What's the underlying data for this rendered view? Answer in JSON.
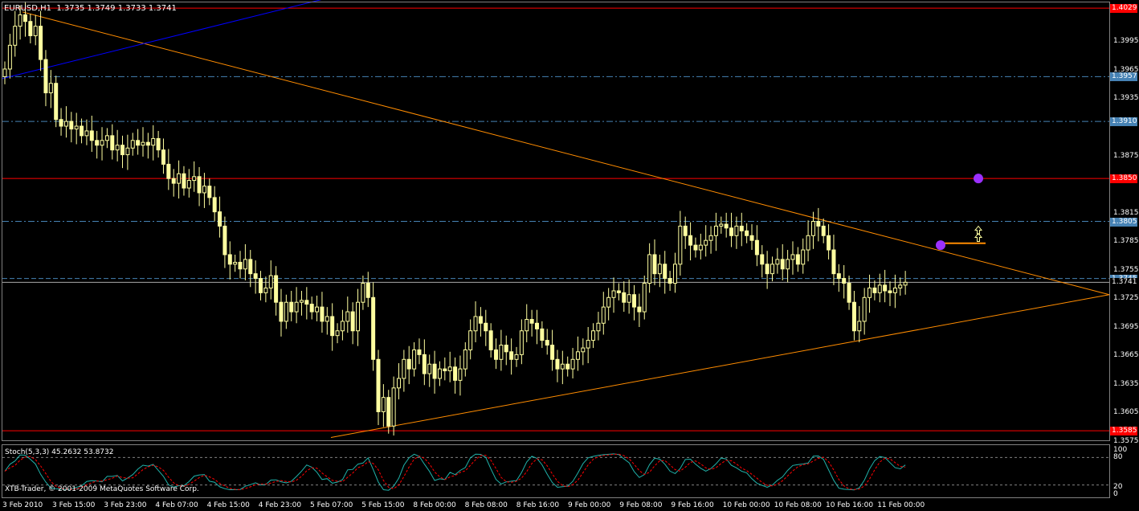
{
  "header": {
    "symbol_label": "EURUSD,H1",
    "ohlc": "1.3735 1.3749 1.3733 1.3741"
  },
  "stoch_panel": {
    "label": "Stoch(5,3,3) 45.2632 53.8732",
    "levels": [
      "100",
      "80",
      "20",
      "0"
    ]
  },
  "copyright": "XTB-Trader, © 2001-2009 MetaQuotes Software Corp.",
  "colors": {
    "background": "#000000",
    "candle": "#ffffa0",
    "red_line": "#ff0000",
    "dash_line": "#4682b4",
    "trend_orange": "#ff8c00",
    "channel_blue": "#0000ff",
    "purple_dot": "#9b30ff",
    "stoch_main": "#20b2aa",
    "stoch_signal": "#ff0000"
  },
  "chart_data": {
    "type": "candlestick",
    "symbol": "EURUSD",
    "timeframe": "H1",
    "ylim": [
      1.3575,
      1.4035
    ],
    "yticks": [
      "1.3995",
      "1.3965",
      "1.3935",
      "1.3875",
      "1.3815",
      "1.3785",
      "1.3755",
      "1.3725",
      "1.3695",
      "1.3665",
      "1.3635",
      "1.3605",
      "1.3575"
    ],
    "price_tags": [
      {
        "value": 1.4029,
        "text": "1.4029",
        "style": "red"
      },
      {
        "value": 1.3957,
        "text": "1.3957",
        "style": "blue"
      },
      {
        "value": 1.391,
        "text": "1.3910",
        "style": "blue"
      },
      {
        "value": 1.385,
        "text": "1.3850",
        "style": "red"
      },
      {
        "value": 1.3805,
        "text": "1.3805",
        "style": "blue"
      },
      {
        "value": 1.3745,
        "text": "1.3745",
        "style": "blue"
      },
      {
        "value": 1.3741,
        "text": "1.3741",
        "style": "dark"
      },
      {
        "value": 1.3585,
        "text": "1.3585",
        "style": "red"
      }
    ],
    "horizontal_lines": [
      {
        "value": 1.4029,
        "style": "solid-red"
      },
      {
        "value": 1.3957,
        "style": "dashdot-blue"
      },
      {
        "value": 1.391,
        "style": "dashdot-blue"
      },
      {
        "value": 1.385,
        "style": "solid-red"
      },
      {
        "value": 1.3805,
        "style": "dashdot-blue"
      },
      {
        "value": 1.3745,
        "style": "dash-blue"
      },
      {
        "value": 1.3741,
        "style": "solid-gray"
      },
      {
        "value": 1.3585,
        "style": "solid-red"
      }
    ],
    "xticks": [
      "3 Feb 2010",
      "3 Feb 15:00",
      "3 Feb 23:00",
      "4 Feb 07:00",
      "4 Feb 15:00",
      "4 Feb 23:00",
      "5 Feb 07:00",
      "5 Feb 15:00",
      "8 Feb 00:00",
      "8 Feb 08:00",
      "8 Feb 16:00",
      "9 Feb 00:00",
      "9 Feb 08:00",
      "9 Feb 16:00",
      "10 Feb 00:00",
      "10 Feb 08:00",
      "10 Feb 16:00",
      "11 Feb 00:00"
    ],
    "closes": [
      1.3965,
      1.399,
      1.401,
      1.4022,
      1.4015,
      1.4,
      1.401,
      1.3975,
      1.394,
      1.395,
      1.3912,
      1.3905,
      1.391,
      1.3902,
      1.3905,
      1.3895,
      1.39,
      1.389,
      1.3885,
      1.389,
      1.3895,
      1.388,
      1.3885,
      1.3875,
      1.3882,
      1.389,
      1.3885,
      1.3888,
      1.3885,
      1.3892,
      1.388,
      1.3865,
      1.385,
      1.3845,
      1.3855,
      1.384,
      1.3848,
      1.3852,
      1.3835,
      1.3842,
      1.383,
      1.3815,
      1.38,
      1.377,
      1.376,
      1.3762,
      1.3755,
      1.3765,
      1.375,
      1.3745,
      1.373,
      1.3735,
      1.3748,
      1.372,
      1.37,
      1.372,
      1.371,
      1.372,
      1.3722,
      1.3718,
      1.371,
      1.3715,
      1.37,
      1.3705,
      1.3685,
      1.369,
      1.37,
      1.371,
      1.369,
      1.372,
      1.374,
      1.3725,
      1.366,
      1.3605,
      1.362,
      1.359,
      1.363,
      1.364,
      1.366,
      1.365,
      1.367,
      1.3665,
      1.3645,
      1.3655,
      1.364,
      1.365,
      1.3648,
      1.3652,
      1.3638,
      1.365,
      1.367,
      1.369,
      1.3705,
      1.3698,
      1.369,
      1.367,
      1.366,
      1.3675,
      1.3668,
      1.366,
      1.3665,
      1.369,
      1.3702,
      1.3698,
      1.3692,
      1.368,
      1.3675,
      1.366,
      1.365,
      1.3655,
      1.365,
      1.366,
      1.3668,
      1.3672,
      1.368,
      1.369,
      1.3698,
      1.3715,
      1.3725,
      1.3732,
      1.373,
      1.372,
      1.3728,
      1.3715,
      1.371,
      1.374,
      1.377,
      1.375,
      1.376,
      1.3745,
      1.374,
      1.376,
      1.38,
      1.379,
      1.378,
      1.3775,
      1.378,
      1.3785,
      1.379,
      1.38,
      1.3802,
      1.3798,
      1.379,
      1.38,
      1.3795,
      1.379,
      1.3785,
      1.377,
      1.376,
      1.375,
      1.376,
      1.3765,
      1.3755,
      1.3765,
      1.377,
      1.376,
      1.3775,
      1.379,
      1.3805,
      1.38,
      1.379,
      1.3775,
      1.375,
      1.3745,
      1.374,
      1.372,
      1.369,
      1.37,
      1.3725,
      1.3735,
      1.373,
      1.3738,
      1.3732,
      1.373,
      1.3735,
      1.3738,
      1.3741
    ],
    "trendlines": [
      {
        "name": "",
        "from": [
          "3 Feb 2010",
          1.4025
        ],
        "to": [
          "11 Feb 2010",
          1.3728
        ]
      },
      {
        "name": "",
        "from": [
          "5 Feb 2010",
          1.3578
        ],
        "to": [
          "11 Feb 2010",
          1.3728
        ]
      },
      {
        "name": "",
        "from": [
          "3 Feb 2010",
          1.3955
        ],
        "to": [
          "3 Feb 2010",
          1.404
        ]
      }
    ],
    "markers": [
      {
        "type": "circle",
        "value": 1.385
      },
      {
        "type": "circle",
        "value": 1.378
      },
      {
        "type": "arrow-up",
        "value": 1.3805
      }
    ],
    "stochastic": {
      "name": "Stoch(5,3,3)",
      "k": 45.2632,
      "d": 53.8732,
      "ylim": [
        0,
        100
      ],
      "levels": [
        20,
        80
      ]
    }
  }
}
